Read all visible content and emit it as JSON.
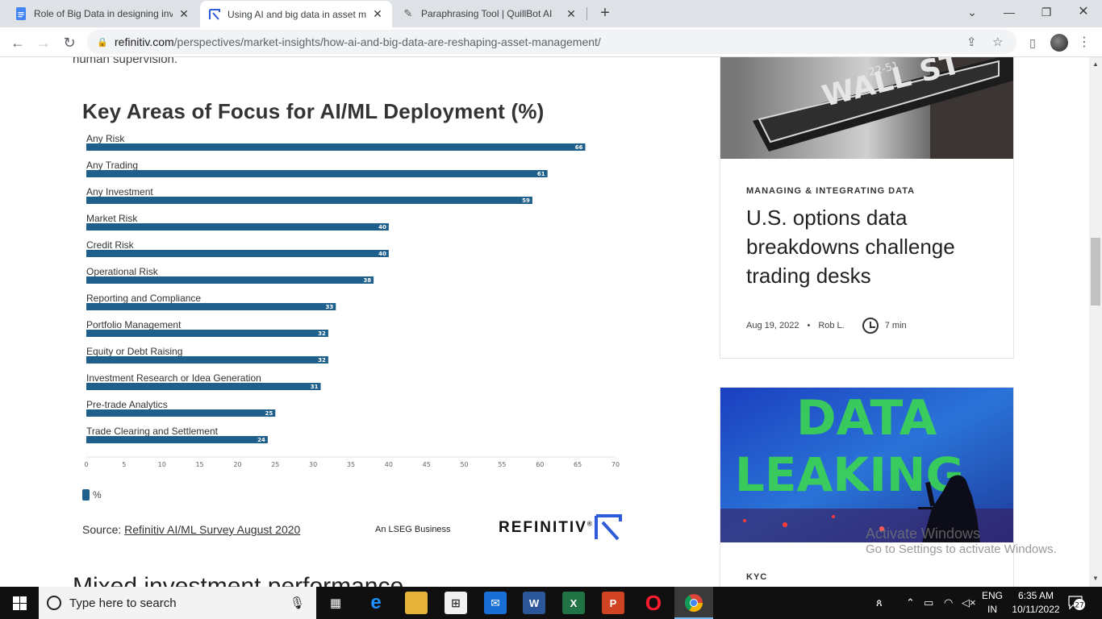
{
  "browser": {
    "tabs": [
      {
        "title": "Role of Big Data in designing inv",
        "active": false,
        "icon": "google-docs-icon"
      },
      {
        "title": "Using AI and big data in asset ma",
        "active": true,
        "icon": "refinitiv-icon"
      },
      {
        "title": "Paraphrasing Tool | QuillBot AI",
        "active": false,
        "icon": "quillbot-icon"
      }
    ],
    "url_host": "refinitiv.com",
    "url_path": "/perspectives/market-insights/how-ai-and-big-data-are-reshaping-asset-management/"
  },
  "article": {
    "prev_text": "human supervision.",
    "next_heading": "Mixed investment performance",
    "source_prefix": "Source: ",
    "source_link": "Refinitiv AI/ML Survey August 2020",
    "lseg": "An LSEG Business",
    "brand": "REFINITIV",
    "brand_mark": "®"
  },
  "chart_data": {
    "type": "bar",
    "orientation": "horizontal",
    "title": "Key Areas of Focus for AI/ML Deployment (%)",
    "categories": [
      "Any Risk",
      "Any Trading",
      "Any Investment",
      "Market Risk",
      "Credit Risk",
      "Operational Risk",
      "Reporting and Compliance",
      "Portfolio Management",
      "Equity or Debt Raising",
      "Investment Research or Idea Generation",
      "Pre-trade Analytics",
      "Trade Clearing and Settlement"
    ],
    "series": [
      {
        "name": "%",
        "values": [
          66,
          61,
          59,
          40,
          40,
          38,
          33,
          32,
          32,
          31,
          25,
          24
        ]
      }
    ],
    "xlim": [
      0,
      70
    ],
    "xticks": [
      "0",
      "5",
      "10",
      "15",
      "20",
      "25",
      "30",
      "35",
      "40",
      "45",
      "50",
      "55",
      "60",
      "65",
      "70"
    ],
    "legend": "bottom-left",
    "bar_color": "#1f5f8b"
  },
  "sidebar": {
    "card1": {
      "tag": "MANAGING & INTEGRATING DATA",
      "title": "U.S. options data breakdowns challenge trading desks",
      "date": "Aug 19, 2022",
      "dot": "•",
      "author": "Rob L.",
      "read_time": "7 min",
      "image_sign_text": "WALL ST",
      "image_sign_num": "22-51"
    },
    "card2": {
      "tag": "KYC",
      "image_text_line1": "DATA",
      "image_text_line2": "LEAKING"
    }
  },
  "watermark": {
    "line1": "Activate Windows",
    "line2": "Go to Settings to activate Windows."
  },
  "taskbar": {
    "search_placeholder": "Type here to search",
    "lang1": "ENG",
    "lang2": "IN",
    "time": "6:35 AM",
    "date": "10/11/2022",
    "notifications": "27"
  }
}
